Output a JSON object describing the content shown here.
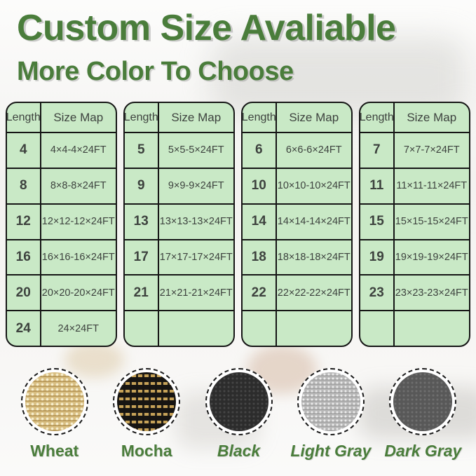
{
  "header": {
    "title": "Custom Size Avaliable",
    "subtitle": "More Color To Choose"
  },
  "size_tables": [
    {
      "columns": [
        "Length",
        "Size Map"
      ],
      "rows": [
        [
          "4",
          "4×4-4×24FT"
        ],
        [
          "8",
          "8×8-8×24FT"
        ],
        [
          "12",
          "12×12-12×24FT"
        ],
        [
          "16",
          "16×16-16×24FT"
        ],
        [
          "20",
          "20×20-20×24FT"
        ],
        [
          "24",
          "24×24FT"
        ]
      ]
    },
    {
      "columns": [
        "Length",
        "Size Map"
      ],
      "rows": [
        [
          "5",
          "5×5-5×24FT"
        ],
        [
          "9",
          "9×9-9×24FT"
        ],
        [
          "13",
          "13×13-13×24FT"
        ],
        [
          "17",
          "17×17-17×24FT"
        ],
        [
          "21",
          "21×21-21×24FT"
        ],
        [
          "",
          ""
        ]
      ]
    },
    {
      "columns": [
        "Length",
        "Size Map"
      ],
      "rows": [
        [
          "6",
          "6×6-6×24FT"
        ],
        [
          "10",
          "10×10-10×24FT"
        ],
        [
          "14",
          "14×14-14×24FT"
        ],
        [
          "18",
          "18×18-18×24FT"
        ],
        [
          "22",
          "22×22-22×24FT"
        ],
        [
          "",
          ""
        ]
      ]
    },
    {
      "columns": [
        "Length",
        "Size Map"
      ],
      "rows": [
        [
          "7",
          "7×7-7×24FT"
        ],
        [
          "11",
          "11×11-11×24FT"
        ],
        [
          "15",
          "15×15-15×24FT"
        ],
        [
          "19",
          "19×19-19×24FT"
        ],
        [
          "23",
          "23×23-23×24FT"
        ],
        [
          "",
          ""
        ]
      ]
    }
  ],
  "color_swatches": {
    "items": [
      {
        "name": "Wheat",
        "hex": "#d9bf82",
        "italic": false
      },
      {
        "name": "Mocha",
        "hex": "#5c4d2a",
        "italic": false
      },
      {
        "name": "Black",
        "hex": "#2c2c2c",
        "italic": true
      },
      {
        "name": "Light Gray",
        "hex": "#b8b8b8",
        "italic": true
      },
      {
        "name": "Dark Gray",
        "hex": "#585858",
        "italic": true
      }
    ]
  },
  "theme": {
    "accent_green": "#4a7d3b",
    "table_background": "#c9e9c6",
    "table_border": "#151515",
    "cell_text": "#3d423e"
  }
}
